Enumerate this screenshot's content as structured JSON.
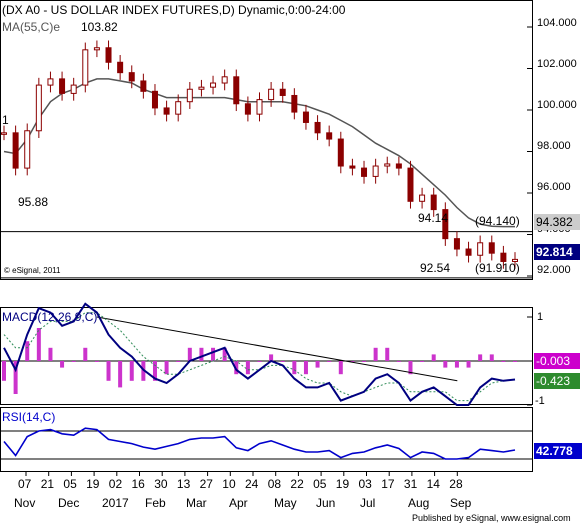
{
  "header": {
    "title": "(DX A0 - US DOLLAR INDEX FUTURES,D) Dynamic,0:00-24:00",
    "ma_label": "MA(55,C)e",
    "copyright": "© eSignal, 2011"
  },
  "price_panel": {
    "y_ticks": [
      "104.000",
      "102.000",
      "100.000",
      "98.000",
      "96.000",
      "94.000",
      "92.000"
    ],
    "annotations": {
      "high": "103.82",
      "low_left": "95.88",
      "peak_aug": "94.14",
      "low_jul": "92.54",
      "level_upper": "(94.140)",
      "level_lower": "(91.910)",
      "left_edge": "1"
    },
    "price_badges": {
      "ma": "94.382",
      "last": "92.814"
    }
  },
  "macd_panel": {
    "title": "MACD(12,26,9,C)",
    "y_ticks": [
      "1",
      "-1"
    ],
    "values": {
      "histogram": "-0.003",
      "macd": "-0.423"
    }
  },
  "rsi_panel": {
    "title": "RSI(14,C)",
    "value": "42.778"
  },
  "x_axis": {
    "days": [
      "07",
      "21",
      "05",
      "19",
      "02",
      "16",
      "30",
      "13",
      "27",
      "10",
      "24",
      "08",
      "22",
      "05",
      "19",
      "03",
      "17",
      "31",
      "14",
      "28"
    ],
    "months": [
      "Nov",
      "Dec",
      "2017",
      "Feb",
      "Mar",
      "Apr",
      "May",
      "Jun",
      "Jul",
      "Aug",
      "Sep"
    ]
  },
  "footer": {
    "credit": "Published by eSignal, www.esignal.com"
  },
  "colors": {
    "price": "#8b0000",
    "ma": "#555555",
    "macd": "#000080",
    "signal": "#2e8b57",
    "histogram": "#cc33cc",
    "rsi": "#0000cc",
    "badge_macd": "#cc00cc",
    "badge_signal": "#2e8b2e"
  },
  "chart_data": [
    {
      "type": "candlestick",
      "title": "(DX A0 - US DOLLAR INDEX FUTURES,D) Dynamic,0:00-24:00",
      "x": [
        "2016-10-28",
        "2016-11-04",
        "2016-11-11",
        "2016-11-18",
        "2016-11-25",
        "2016-12-02",
        "2016-12-09",
        "2016-12-16",
        "2016-12-23",
        "2016-12-30",
        "2017-01-06",
        "2017-01-13",
        "2017-01-20",
        "2017-01-27",
        "2017-02-03",
        "2017-02-10",
        "2017-02-17",
        "2017-02-24",
        "2017-03-03",
        "2017-03-10",
        "2017-03-17",
        "2017-03-24",
        "2017-03-31",
        "2017-04-07",
        "2017-04-14",
        "2017-04-21",
        "2017-04-28",
        "2017-05-05",
        "2017-05-12",
        "2017-05-19",
        "2017-05-26",
        "2017-06-02",
        "2017-06-09",
        "2017-06-16",
        "2017-06-23",
        "2017-06-30",
        "2017-07-07",
        "2017-07-14",
        "2017-07-21",
        "2017-07-28",
        "2017-08-04",
        "2017-08-11",
        "2017-08-18",
        "2017-08-25",
        "2017-08-30"
      ],
      "close": [
        98.9,
        97.2,
        99.0,
        101.2,
        101.5,
        100.8,
        101.2,
        102.9,
        103.0,
        102.3,
        101.8,
        101.4,
        100.9,
        100.1,
        99.8,
        100.4,
        101.0,
        101.1,
        101.3,
        101.6,
        100.3,
        99.8,
        100.5,
        101.0,
        100.7,
        99.9,
        99.4,
        98.9,
        98.6,
        97.3,
        97.2,
        96.8,
        97.3,
        97.4,
        97.2,
        95.6,
        95.9,
        95.2,
        93.8,
        93.3,
        93.0,
        93.6,
        93.1,
        92.7,
        92.8
      ],
      "series": [
        {
          "name": "MA(55,C)e",
          "values": [
            98.0,
            97.9,
            98.6,
            99.6,
            100.4,
            100.8,
            101.0,
            101.3,
            101.5,
            101.5,
            101.4,
            101.3,
            101.0,
            100.8,
            100.6,
            100.6,
            100.6,
            100.6,
            100.6,
            100.6,
            100.5,
            100.4,
            100.4,
            100.4,
            100.4,
            100.3,
            100.2,
            100.0,
            99.8,
            99.5,
            99.2,
            98.8,
            98.4,
            98.1,
            97.8,
            97.4,
            96.9,
            96.4,
            95.9,
            95.3,
            94.8,
            94.5,
            94.4,
            94.38,
            94.38
          ]
        }
      ],
      "ylim": [
        91.5,
        105.0
      ],
      "yticks": [
        92,
        94,
        96,
        98,
        100,
        102,
        104
      ],
      "horizontal_levels": [
        94.14,
        91.91
      ],
      "grid": false
    },
    {
      "type": "line",
      "title": "MACD(12,26,9,C)",
      "x": [
        "2016-10-28",
        "2016-11-04",
        "2016-11-11",
        "2016-11-18",
        "2016-11-25",
        "2016-12-02",
        "2016-12-09",
        "2016-12-16",
        "2016-12-23",
        "2016-12-30",
        "2017-01-06",
        "2017-01-13",
        "2017-01-20",
        "2017-01-27",
        "2017-02-03",
        "2017-02-10",
        "2017-02-17",
        "2017-02-24",
        "2017-03-03",
        "2017-03-10",
        "2017-03-17",
        "2017-03-24",
        "2017-03-31",
        "2017-04-07",
        "2017-04-14",
        "2017-04-21",
        "2017-04-28",
        "2017-05-05",
        "2017-05-12",
        "2017-05-19",
        "2017-05-26",
        "2017-06-02",
        "2017-06-09",
        "2017-06-16",
        "2017-06-23",
        "2017-06-30",
        "2017-07-07",
        "2017-07-14",
        "2017-07-21",
        "2017-07-28",
        "2017-08-04",
        "2017-08-11",
        "2017-08-18",
        "2017-08-25",
        "2017-08-30"
      ],
      "series": [
        {
          "name": "MACD",
          "values": [
            0.3,
            -0.2,
            0.6,
            1.2,
            1.1,
            0.8,
            0.9,
            1.3,
            1.1,
            0.6,
            0.3,
            0.1,
            -0.2,
            -0.4,
            -0.5,
            -0.3,
            0.0,
            0.1,
            0.2,
            0.3,
            -0.2,
            -0.4,
            -0.2,
            0.0,
            -0.1,
            -0.4,
            -0.6,
            -0.6,
            -0.5,
            -0.9,
            -0.8,
            -0.7,
            -0.4,
            -0.3,
            -0.5,
            -0.9,
            -0.7,
            -0.6,
            -0.8,
            -1.0,
            -1.0,
            -0.6,
            -0.4,
            -0.45,
            -0.42
          ]
        },
        {
          "name": "Signal",
          "values": [
            0.6,
            0.3,
            0.3,
            0.7,
            0.9,
            0.9,
            0.9,
            1.1,
            1.1,
            0.9,
            0.7,
            0.4,
            0.1,
            -0.1,
            -0.3,
            -0.3,
            -0.2,
            -0.1,
            0.0,
            0.1,
            0.0,
            -0.2,
            -0.2,
            -0.1,
            -0.1,
            -0.2,
            -0.4,
            -0.5,
            -0.5,
            -0.7,
            -0.8,
            -0.7,
            -0.6,
            -0.5,
            -0.5,
            -0.7,
            -0.7,
            -0.7,
            -0.7,
            -0.9,
            -0.9,
            -0.7,
            -0.5,
            -0.45,
            -0.42
          ]
        }
      ],
      "ylim": [
        -1.2,
        1.2
      ],
      "yticks": [
        1,
        -1
      ]
    },
    {
      "type": "line",
      "title": "RSI(14,C)",
      "x": [
        "2016-10-28",
        "2016-11-04",
        "2016-11-11",
        "2016-11-18",
        "2016-11-25",
        "2016-12-02",
        "2016-12-09",
        "2016-12-16",
        "2016-12-23",
        "2016-12-30",
        "2017-01-06",
        "2017-01-13",
        "2017-01-20",
        "2017-01-27",
        "2017-02-03",
        "2017-02-10",
        "2017-02-17",
        "2017-02-24",
        "2017-03-03",
        "2017-03-10",
        "2017-03-17",
        "2017-03-24",
        "2017-03-31",
        "2017-04-07",
        "2017-04-14",
        "2017-04-21",
        "2017-04-28",
        "2017-05-05",
        "2017-05-12",
        "2017-05-19",
        "2017-05-26",
        "2017-06-02",
        "2017-06-09",
        "2017-06-16",
        "2017-06-23",
        "2017-06-30",
        "2017-07-07",
        "2017-07-14",
        "2017-07-21",
        "2017-07-28",
        "2017-08-04",
        "2017-08-11",
        "2017-08-18",
        "2017-08-25",
        "2017-08-30"
      ],
      "series": [
        {
          "name": "RSI(14,C)",
          "values": [
            55,
            35,
            62,
            70,
            72,
            66,
            64,
            74,
            72,
            58,
            55,
            52,
            47,
            44,
            48,
            52,
            58,
            60,
            60,
            62,
            46,
            42,
            52,
            56,
            50,
            44,
            40,
            40,
            42,
            32,
            38,
            40,
            46,
            50,
            45,
            32,
            40,
            38,
            30,
            30,
            32,
            44,
            42,
            40,
            42.8
          ]
        }
      ],
      "ylim": [
        20,
        80
      ],
      "levels": [
        70,
        30
      ]
    }
  ]
}
